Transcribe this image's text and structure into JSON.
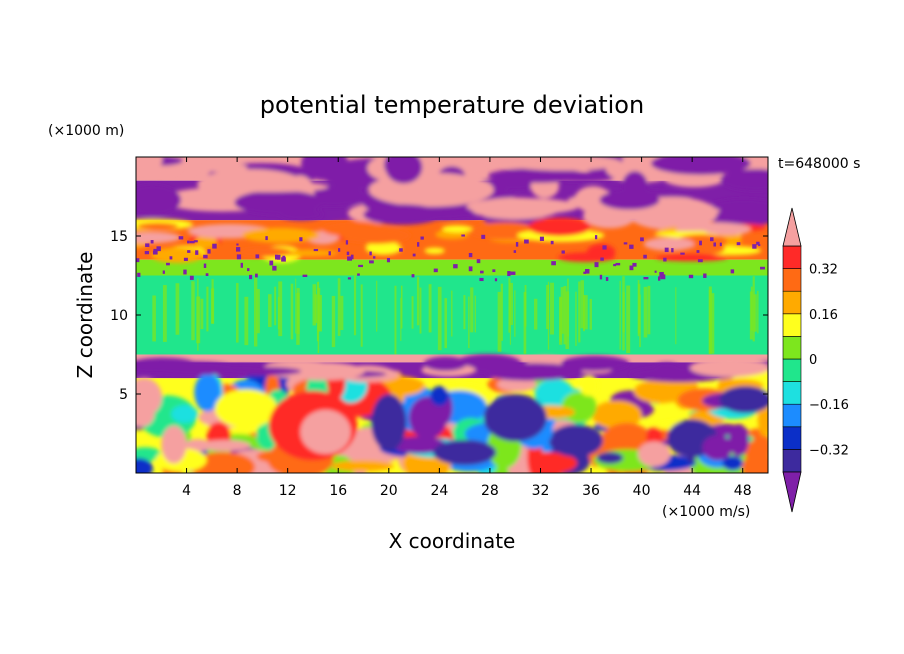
{
  "chart_data": {
    "type": "heatmap",
    "title": "potential temperature deviation",
    "time_label": "t=648000 s",
    "xlabel": "X coordinate",
    "ylabel": "Z coordinate",
    "x_unit": "(×1000 m/s)",
    "y_unit": "(×1000 m)",
    "xlim": [
      0,
      50
    ],
    "ylim": [
      0,
      20
    ],
    "x_ticks": [
      4,
      8,
      12,
      16,
      20,
      24,
      28,
      32,
      36,
      40,
      44,
      48
    ],
    "y_ticks": [
      5,
      10,
      15
    ],
    "colorbar": {
      "levels": [
        -0.4,
        -0.32,
        -0.24,
        -0.16,
        -0.08,
        0,
        0.08,
        0.16,
        0.24,
        0.32,
        0.4
      ],
      "tick_labels": [
        "0.32",
        "0.16",
        "0",
        "−0.16",
        "−0.32"
      ],
      "tick_values": [
        0.32,
        0.16,
        0,
        -0.16,
        -0.32
      ],
      "colors": [
        "#7f1fa8",
        "#3d2a9e",
        "#0b2fc8",
        "#1c8cff",
        "#1ee0e0",
        "#20e68c",
        "#7de61e",
        "#ffff1e",
        "#ffaa00",
        "#ff6a14",
        "#ff2a28",
        "#f5a0a0"
      ],
      "extend": "both"
    },
    "layers": [
      {
        "z_range": [
          18.5,
          20
        ],
        "dominant": 0.45,
        "mixed_with": -0.45
      },
      {
        "z_range": [
          16,
          18.5
        ],
        "dominant": -0.45,
        "mixed_with": 0.45
      },
      {
        "z_range": [
          13.5,
          16
        ],
        "dominant": 0.3,
        "mixed_with": -0.45
      },
      {
        "z_range": [
          12.5,
          13.5
        ],
        "dominant": 0.05
      },
      {
        "z_range": [
          7.5,
          12.5
        ],
        "dominant": -0.02
      },
      {
        "z_range": [
          7,
          7.5
        ],
        "dominant": 0.45
      },
      {
        "z_range": [
          6,
          7
        ],
        "dominant": -0.45,
        "mixed_with": 0.45
      },
      {
        "z_range": [
          0,
          6
        ],
        "dominant": "mixed",
        "range": [
          -0.45,
          0.45
        ]
      }
    ]
  }
}
